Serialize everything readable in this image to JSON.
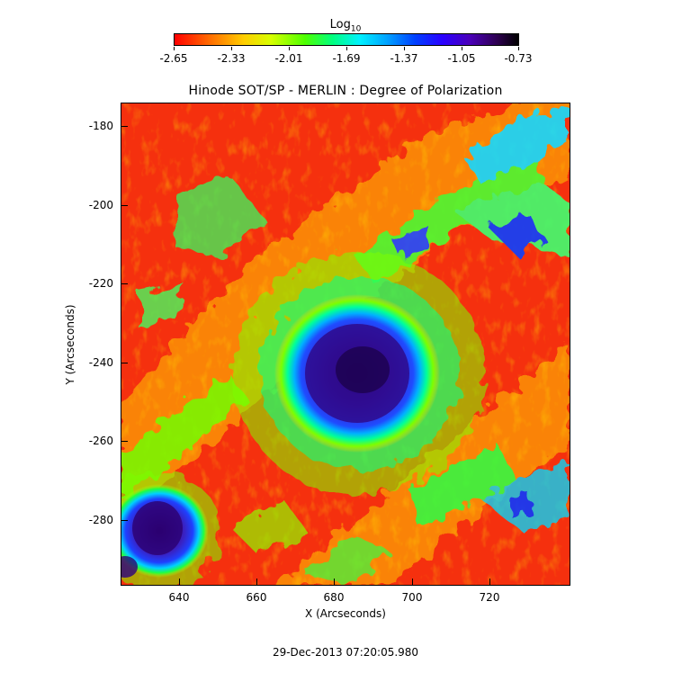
{
  "colorbar": {
    "title_base": "Log",
    "title_sub": "10",
    "tick_labels": [
      "-2.65",
      "-2.33",
      "-2.01",
      "-1.69",
      "-1.37",
      "-1.05",
      "-0.73"
    ],
    "colors": {
      "low": "#ff0000",
      "mid": "#00ff00",
      "high": "#000000"
    }
  },
  "plot": {
    "title": "Hinode SOT/SP - MERLIN : Degree of Polarization",
    "xlabel": "X (Arcseconds)",
    "ylabel": "Y (Arcseconds)",
    "x_ticks": [
      "640",
      "660",
      "680",
      "700",
      "720"
    ],
    "y_ticks": [
      "-180",
      "-200",
      "-220",
      "-240",
      "-260",
      "-280"
    ],
    "x_range": [
      626,
      740
    ],
    "y_range": [
      -296,
      -174
    ],
    "colormap": "rainbow (red to black)",
    "features": {
      "main_sunspot_center": [
        682,
        -241
      ],
      "secondary_sunspot_center": [
        636,
        -283
      ]
    }
  },
  "footer": {
    "timestamp": "29-Dec-2013 07:20:05.980"
  }
}
